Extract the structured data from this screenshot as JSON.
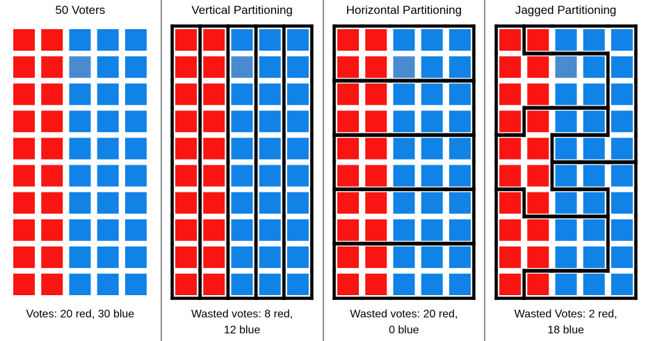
{
  "colors": {
    "red": "#f81512",
    "blue": "#1182e6",
    "light_blue": "#4a8bd0",
    "district_line": "#000000",
    "divider": "#8c8c8c",
    "background": "#ffffff",
    "text": "#000000"
  },
  "grid": {
    "rows": 10,
    "cols": 5,
    "red_cols": [
      1,
      2
    ],
    "light_cell": {
      "row": 2,
      "col": 3
    },
    "total_voters": 50,
    "red_voters": 20,
    "blue_voters": 30
  },
  "panels": [
    {
      "id": "fifty-voters",
      "title": "50 Voters",
      "caption_lines": [
        "Votes: 20 red, 30 blue"
      ],
      "partition": "none",
      "districts": []
    },
    {
      "id": "vertical-partitioning",
      "title": "Vertical Partitioning",
      "caption_lines": [
        "Wasted votes: 8 red,",
        "12 blue"
      ],
      "partition": "vertical",
      "districts": [
        {
          "cells": [
            [
              1,
              1
            ],
            [
              2,
              1
            ],
            [
              3,
              1
            ],
            [
              4,
              1
            ],
            [
              5,
              1
            ],
            [
              6,
              1
            ],
            [
              7,
              1
            ],
            [
              8,
              1
            ],
            [
              9,
              1
            ],
            [
              10,
              1
            ]
          ]
        },
        {
          "cells": [
            [
              1,
              2
            ],
            [
              2,
              2
            ],
            [
              3,
              2
            ],
            [
              4,
              2
            ],
            [
              5,
              2
            ],
            [
              6,
              2
            ],
            [
              7,
              2
            ],
            [
              8,
              2
            ],
            [
              9,
              2
            ],
            [
              10,
              2
            ]
          ]
        },
        {
          "cells": [
            [
              1,
              3
            ],
            [
              2,
              3
            ],
            [
              3,
              3
            ],
            [
              4,
              3
            ],
            [
              5,
              3
            ],
            [
              6,
              3
            ],
            [
              7,
              3
            ],
            [
              8,
              3
            ],
            [
              9,
              3
            ],
            [
              10,
              3
            ]
          ]
        },
        {
          "cells": [
            [
              1,
              4
            ],
            [
              2,
              4
            ],
            [
              3,
              4
            ],
            [
              4,
              4
            ],
            [
              5,
              4
            ],
            [
              6,
              4
            ],
            [
              7,
              4
            ],
            [
              8,
              4
            ],
            [
              9,
              4
            ],
            [
              10,
              4
            ]
          ]
        },
        {
          "cells": [
            [
              1,
              5
            ],
            [
              2,
              5
            ],
            [
              3,
              5
            ],
            [
              4,
              5
            ],
            [
              5,
              5
            ],
            [
              6,
              5
            ],
            [
              7,
              5
            ],
            [
              8,
              5
            ],
            [
              9,
              5
            ],
            [
              10,
              5
            ]
          ]
        }
      ]
    },
    {
      "id": "horizontal-partitioning",
      "title": "Horizontal Partitioning",
      "caption_lines": [
        "Wasted votes: 20 red,",
        "0 blue"
      ],
      "partition": "horizontal",
      "districts": [
        {
          "cells": [
            [
              1,
              1
            ],
            [
              1,
              2
            ],
            [
              1,
              3
            ],
            [
              1,
              4
            ],
            [
              1,
              5
            ],
            [
              2,
              1
            ],
            [
              2,
              2
            ],
            [
              2,
              3
            ],
            [
              2,
              4
            ],
            [
              2,
              5
            ]
          ]
        },
        {
          "cells": [
            [
              3,
              1
            ],
            [
              3,
              2
            ],
            [
              3,
              3
            ],
            [
              3,
              4
            ],
            [
              3,
              5
            ],
            [
              4,
              1
            ],
            [
              4,
              2
            ],
            [
              4,
              3
            ],
            [
              4,
              4
            ],
            [
              4,
              5
            ]
          ]
        },
        {
          "cells": [
            [
              5,
              1
            ],
            [
              5,
              2
            ],
            [
              5,
              3
            ],
            [
              5,
              4
            ],
            [
              5,
              5
            ],
            [
              6,
              1
            ],
            [
              6,
              2
            ],
            [
              6,
              3
            ],
            [
              6,
              4
            ],
            [
              6,
              5
            ]
          ]
        },
        {
          "cells": [
            [
              7,
              1
            ],
            [
              7,
              2
            ],
            [
              7,
              3
            ],
            [
              7,
              4
            ],
            [
              7,
              5
            ],
            [
              8,
              1
            ],
            [
              8,
              2
            ],
            [
              8,
              3
            ],
            [
              8,
              4
            ],
            [
              8,
              5
            ]
          ]
        },
        {
          "cells": [
            [
              9,
              1
            ],
            [
              9,
              2
            ],
            [
              9,
              3
            ],
            [
              9,
              4
            ],
            [
              9,
              5
            ],
            [
              10,
              1
            ],
            [
              10,
              2
            ],
            [
              10,
              3
            ],
            [
              10,
              4
            ],
            [
              10,
              5
            ]
          ]
        }
      ]
    },
    {
      "id": "jagged-partitioning",
      "title": "Jagged Partitioning",
      "caption_lines": [
        "Wasted Votes: 2 red,",
        "18 blue"
      ],
      "partition": "jagged",
      "districts": [
        {
          "cells": [
            [
              1,
              1
            ],
            [
              2,
              1
            ],
            [
              2,
              2
            ],
            [
              2,
              3
            ],
            [
              2,
              4
            ],
            [
              3,
              1
            ],
            [
              3,
              2
            ],
            [
              3,
              3
            ],
            [
              3,
              4
            ],
            [
              4,
              1
            ]
          ]
        },
        {
          "cells": [
            [
              1,
              2
            ],
            [
              1,
              3
            ],
            [
              1,
              4
            ],
            [
              1,
              5
            ],
            [
              2,
              5
            ],
            [
              3,
              5
            ],
            [
              4,
              5
            ],
            [
              5,
              3
            ],
            [
              5,
              4
            ],
            [
              5,
              5
            ]
          ]
        },
        {
          "cells": [
            [
              4,
              2
            ],
            [
              4,
              3
            ],
            [
              4,
              4
            ],
            [
              5,
              1
            ],
            [
              5,
              2
            ],
            [
              6,
              1
            ],
            [
              6,
              2
            ],
            [
              7,
              2
            ],
            [
              7,
              3
            ],
            [
              7,
              4
            ]
          ]
        },
        {
          "cells": [
            [
              6,
              3
            ],
            [
              6,
              4
            ],
            [
              6,
              5
            ],
            [
              7,
              5
            ],
            [
              8,
              5
            ],
            [
              9,
              5
            ],
            [
              10,
              2
            ],
            [
              10,
              3
            ],
            [
              10,
              4
            ],
            [
              10,
              5
            ]
          ]
        },
        {
          "cells": [
            [
              7,
              1
            ],
            [
              8,
              1
            ],
            [
              8,
              2
            ],
            [
              8,
              3
            ],
            [
              8,
              4
            ],
            [
              9,
              1
            ],
            [
              9,
              2
            ],
            [
              9,
              3
            ],
            [
              9,
              4
            ],
            [
              10,
              1
            ]
          ]
        }
      ]
    }
  ]
}
